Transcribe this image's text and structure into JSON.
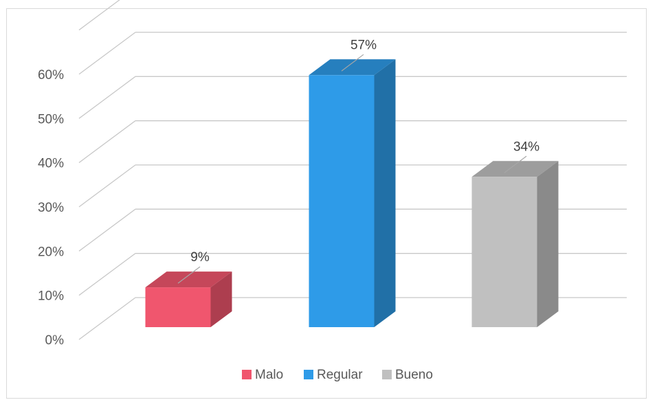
{
  "chart_data": {
    "type": "bar",
    "categories": [
      "Malo",
      "Regular",
      "Bueno"
    ],
    "values": [
      9,
      57,
      34
    ],
    "value_labels": [
      "9%",
      "57%",
      "34%"
    ],
    "colors": [
      "#f0566e",
      "#2e9be8",
      "#c0c0c0"
    ],
    "ylim": [
      0,
      60
    ],
    "yticks": [
      0,
      10,
      20,
      30,
      40,
      50,
      60
    ],
    "ytick_labels": [
      "0%",
      "10%",
      "20%",
      "30%",
      "40%",
      "50%",
      "60%"
    ],
    "grid": true,
    "three_d": true,
    "legend": {
      "position": "bottom",
      "items": [
        {
          "label": "Malo",
          "color": "#f0566e"
        },
        {
          "label": "Regular",
          "color": "#2e9be8"
        },
        {
          "label": "Bueno",
          "color": "#c0c0c0"
        }
      ]
    }
  }
}
